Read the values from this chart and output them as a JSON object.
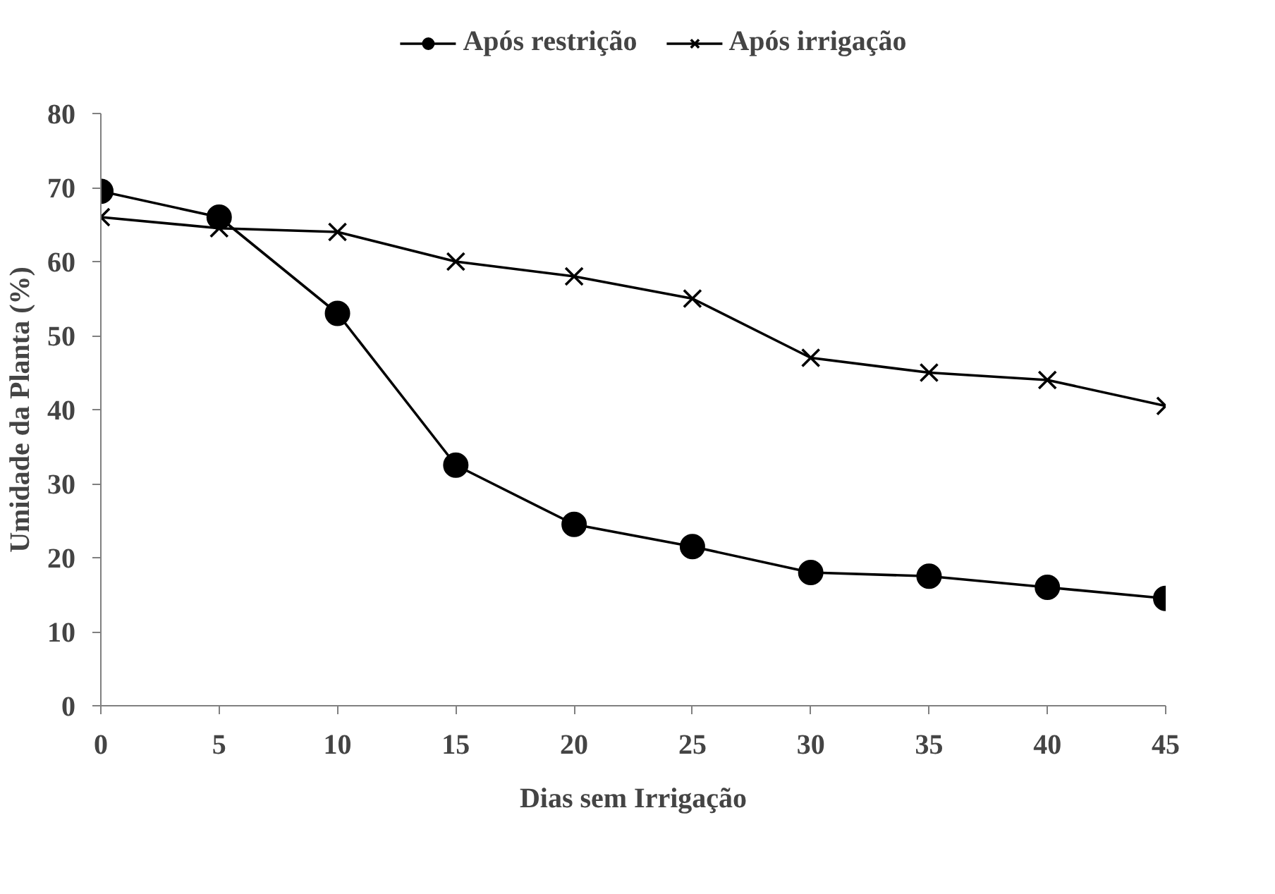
{
  "chart_data": {
    "type": "line",
    "xlabel": "Dias sem Irrigação",
    "ylabel": "Umidade da Planta (%)",
    "x": [
      0,
      5,
      10,
      15,
      20,
      25,
      30,
      35,
      40,
      45
    ],
    "series": [
      {
        "name": "Após restrição",
        "color": "#000000",
        "marker": "circle",
        "values": [
          69.5,
          66,
          53,
          32.5,
          24.5,
          21.5,
          18,
          17.5,
          16,
          14.5
        ]
      },
      {
        "name": "Após irrigação",
        "color": "#000000",
        "marker": "cross",
        "values": [
          66,
          64.5,
          64,
          60,
          58,
          55,
          47,
          45,
          44,
          40.5
        ]
      }
    ],
    "xlim": [
      0,
      45
    ],
    "xticks": [
      0,
      5,
      10,
      15,
      20,
      25,
      30,
      35,
      40,
      45
    ],
    "ylim": [
      0,
      80
    ],
    "yticks": [
      0,
      10,
      20,
      30,
      40,
      50,
      60,
      70,
      80
    ],
    "grid": false,
    "legend": "top",
    "line_style": "solid"
  }
}
